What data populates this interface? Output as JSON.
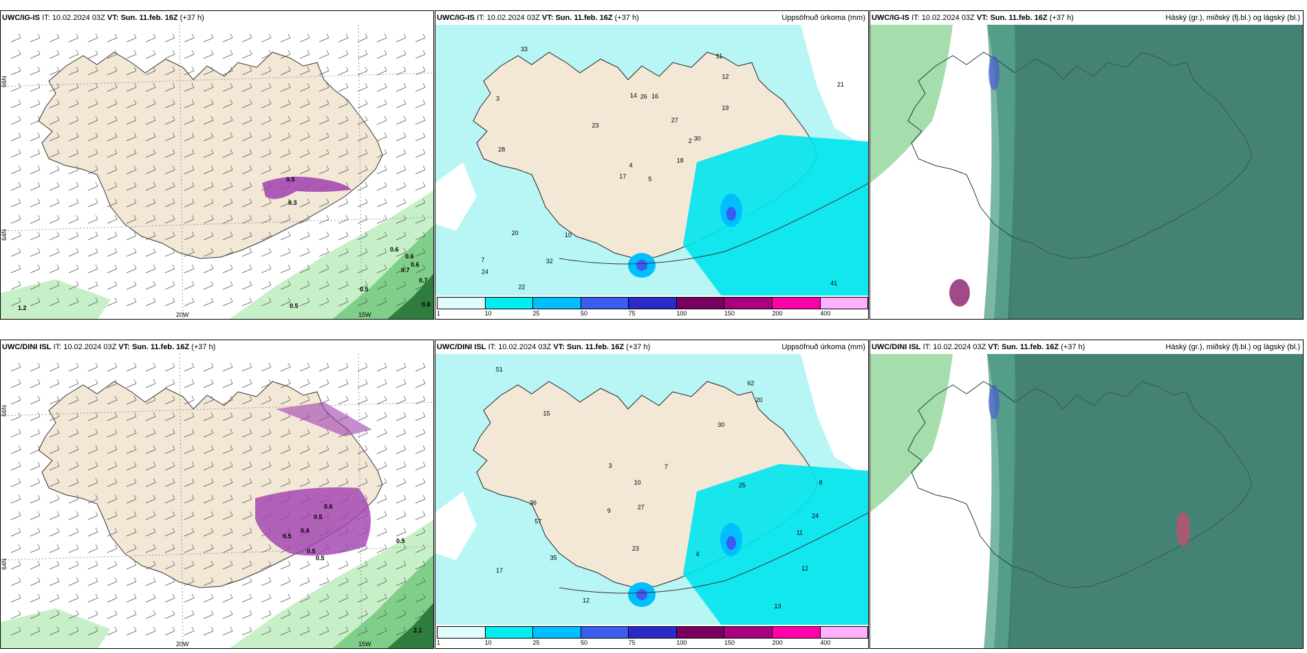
{
  "rows": [
    {
      "model": "UWC/IG-IS",
      "it_label": "IT:",
      "it_value": "10.02.2024 03Z",
      "vt_label": "VT:",
      "vt_value": "Sun. 11.feb. 16Z",
      "lead": "(+37 h)",
      "panels": [
        {
          "kind": "wind-precip",
          "right_title": "",
          "map_labels": [
            "66N",
            "64N",
            "20W",
            "15W",
            "0.5",
            "0.3",
            "0.6",
            "0.6",
            "0.6",
            "0.7",
            "0.7",
            "0.5",
            "0.5",
            "0.8",
            "1.2"
          ]
        },
        {
          "kind": "accum-precip",
          "right_title": "Uppsöfnuð úrkoma (mm)",
          "map_labels": [
            "5",
            "3",
            "4",
            "7",
            "2",
            "10",
            "11",
            "16",
            "12",
            "18",
            "33",
            "41",
            "28",
            "21",
            "17",
            "19",
            "22",
            "14",
            "27",
            "20",
            "23",
            "24",
            "32",
            "26",
            "30"
          ]
        },
        {
          "kind": "clouds",
          "right_title": "Háský (gr.), miðský (fj.bl.) og lágský (bl.)",
          "map_labels": []
        }
      ]
    },
    {
      "model": "UWC/DINI ISL",
      "it_label": "IT:",
      "it_value": "10.02.2024 03Z",
      "vt_label": "VT:",
      "vt_value": "Sun. 11.feb. 16Z",
      "lead": "(+37 h)",
      "panels": [
        {
          "kind": "wind-precip",
          "right_title": "",
          "map_labels": [
            "66N",
            "64N",
            "20W",
            "15W",
            "0.5",
            "0.4",
            "0.5",
            "0.6",
            "0.5",
            "0.5",
            "2.1",
            "0.5"
          ]
        },
        {
          "kind": "accum-precip",
          "right_title": "Uppsöfnuð úrkoma (mm)",
          "map_labels": [
            "7",
            "8",
            "9",
            "4",
            "3",
            "12",
            "15",
            "36",
            "51",
            "62",
            "30",
            "27",
            "23",
            "17",
            "35",
            "25",
            "24",
            "13",
            "11",
            "12",
            "10",
            "57",
            "20"
          ]
        },
        {
          "kind": "clouds",
          "right_title": "Háský (gr.), miðský (fj.bl.) og lágský (bl.)",
          "map_labels": []
        }
      ]
    }
  ],
  "legend": {
    "labels": [
      "1",
      "10",
      "25",
      "50",
      "75",
      "100",
      "150",
      "200",
      "400"
    ],
    "colors": [
      "#e0fbfb",
      "#00eeee",
      "#00bfff",
      "#3a5cf0",
      "#2a2ac8",
      "#7a0060",
      "#aa0080",
      "#ff00aa",
      "#ffb0ff"
    ]
  },
  "colors": {
    "land": "#f3e7d6",
    "sea": "#ffffff",
    "precip_light": "#c8f0c8",
    "precip_green": "#7fcf8a",
    "precip_dark": "#2e7d3e",
    "accum_base": "#b8f5f5",
    "accum_mid": "#00e5ee",
    "cloud_dark": "#3e7f70",
    "cloud_mid": "#5aa58e",
    "snow_purple": "#a040b0"
  }
}
